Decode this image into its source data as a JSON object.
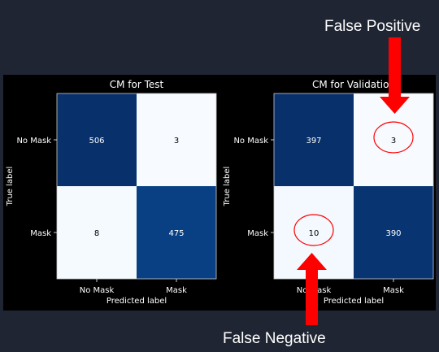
{
  "annotations": {
    "false_positive": "False Positive",
    "false_negative": "False Negative"
  },
  "colors": {
    "page_background": "#1f2533",
    "figure_background": "#000000",
    "arrow": "#ff0000",
    "circle": "#ff0000",
    "axis_text": "#ffffff"
  },
  "chart_data": [
    {
      "type": "heatmap",
      "title": "CM for Test",
      "xlabel": "Predicted label",
      "ylabel": "True label",
      "x_ticklabels": [
        "No Mask",
        "Mask"
      ],
      "y_ticklabels": [
        "No Mask",
        "Mask"
      ],
      "values": [
        [
          506,
          3
        ],
        [
          8,
          475
        ]
      ],
      "colormap": "Blues"
    },
    {
      "type": "heatmap",
      "title": "CM for Validation",
      "xlabel": "Predicted label",
      "ylabel": "True label",
      "x_ticklabels": [
        "No Mask",
        "Mask"
      ],
      "y_ticklabels": [
        "No Mask",
        "Mask"
      ],
      "values": [
        [
          397,
          3
        ],
        [
          10,
          390
        ]
      ],
      "colormap": "Blues",
      "highlighted_cells": [
        {
          "row": 0,
          "col": 1,
          "label": "False Positive"
        },
        {
          "row": 1,
          "col": 0,
          "label": "False Negative"
        }
      ]
    }
  ]
}
